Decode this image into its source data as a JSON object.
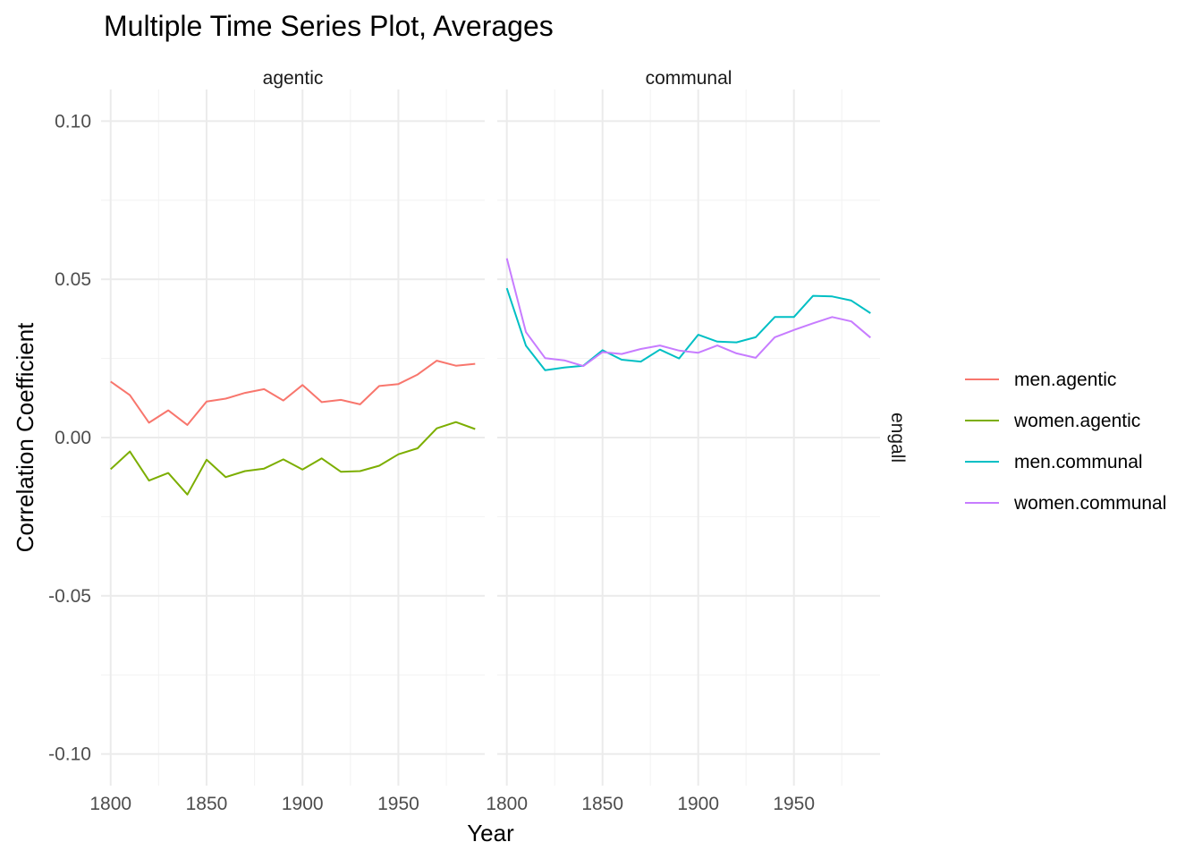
{
  "chart_data": {
    "type": "line",
    "title": "Multiple Time Series Plot, Averages",
    "xlabel": "Year",
    "ylabel": "Correlation Coefficient",
    "xlim": [
      1795,
      1995
    ],
    "ylim": [
      -0.11,
      0.11
    ],
    "x_ticks": [
      1800,
      1850,
      1900,
      1950
    ],
    "y_ticks": [
      -0.1,
      -0.05,
      0.0,
      0.05,
      0.1
    ],
    "y_tick_labels": [
      "-0.10",
      "-0.05",
      "0.00",
      "0.05",
      "0.10"
    ],
    "grid": true,
    "legend_position": "right",
    "row_strip": "engall",
    "x": [
      1800,
      1810,
      1820,
      1830,
      1840,
      1850,
      1860,
      1870,
      1880,
      1890,
      1900,
      1910,
      1920,
      1930,
      1940,
      1950,
      1960,
      1970,
      1980,
      1990
    ],
    "panels": [
      {
        "label": "agentic",
        "series": [
          {
            "name": "men.agentic",
            "color": "#F8766D",
            "values": [
              0.0177,
              0.0134,
              0.0047,
              0.0086,
              0.004,
              0.0114,
              0.0123,
              0.0141,
              0.0153,
              0.0117,
              0.0166,
              0.0112,
              0.0119,
              0.0105,
              0.0163,
              0.0169,
              0.0199,
              0.0243,
              0.0227,
              0.0233
            ]
          },
          {
            "name": "women.agentic",
            "color": "#7CAE00",
            "values": [
              -0.01,
              -0.0044,
              -0.0136,
              -0.0112,
              -0.018,
              -0.007,
              -0.0125,
              -0.0106,
              -0.0098,
              -0.0069,
              -0.0101,
              -0.0066,
              -0.0108,
              -0.0106,
              -0.0089,
              -0.0053,
              -0.0034,
              0.0029,
              0.0049,
              0.0027
            ]
          }
        ]
      },
      {
        "label": "communal",
        "series": [
          {
            "name": "men.communal",
            "color": "#00BFC4",
            "values": [
              0.0472,
              0.029,
              0.0213,
              0.0221,
              0.0227,
              0.0276,
              0.0246,
              0.024,
              0.0278,
              0.025,
              0.0325,
              0.0303,
              0.0301,
              0.0317,
              0.0381,
              0.0381,
              0.0448,
              0.0446,
              0.0433,
              0.0393
            ]
          },
          {
            "name": "women.communal",
            "color": "#C77CFF",
            "values": [
              0.0566,
              0.0333,
              0.0251,
              0.0244,
              0.0226,
              0.027,
              0.0264,
              0.028,
              0.0291,
              0.0275,
              0.0268,
              0.0291,
              0.0266,
              0.0252,
              0.0317,
              0.034,
              0.0361,
              0.0381,
              0.0367,
              0.0316
            ]
          }
        ]
      }
    ],
    "legend": [
      "men.agentic",
      "women.agentic",
      "men.communal",
      "women.communal"
    ]
  }
}
